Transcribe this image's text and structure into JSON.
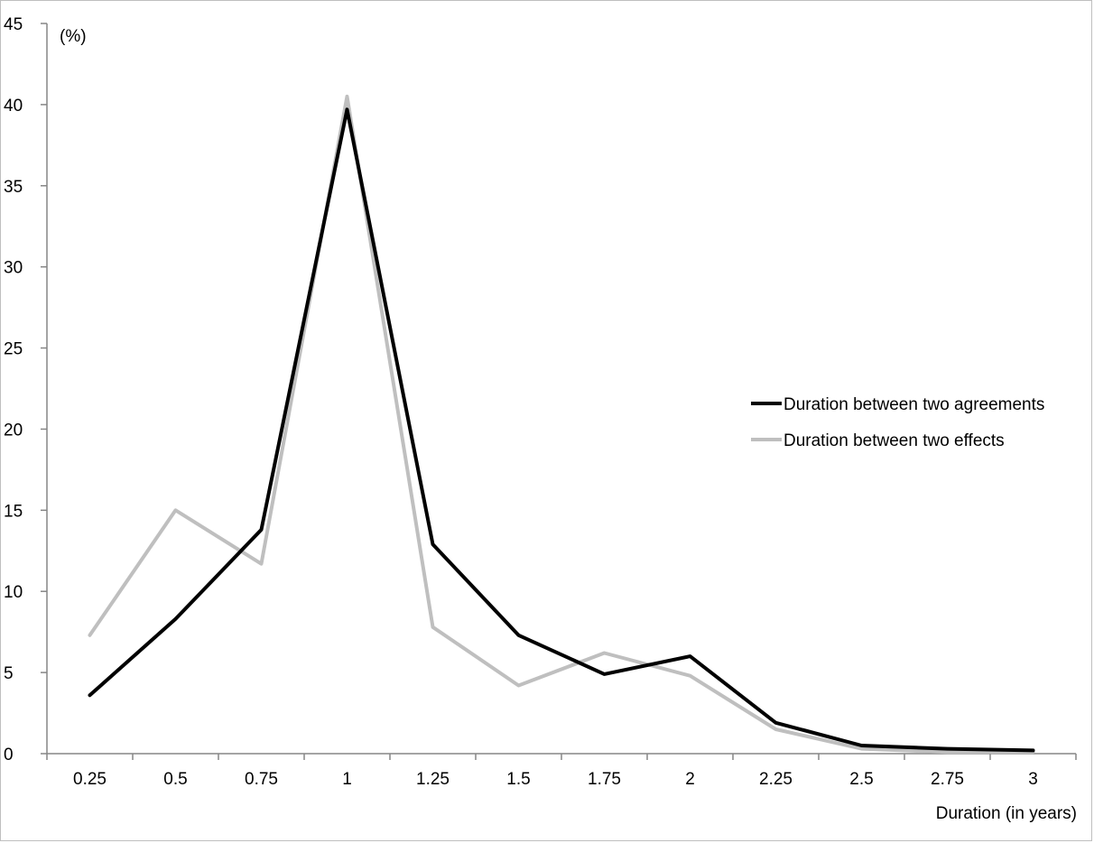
{
  "chart_data": {
    "type": "line",
    "title": "",
    "xlabel": "Duration (in years)",
    "ylabel": "(%)",
    "x": [
      0.25,
      0.5,
      0.75,
      1,
      1.25,
      1.5,
      1.75,
      2,
      2.25,
      2.5,
      2.75,
      3
    ],
    "x_tick_labels": [
      "0.25",
      "0.5",
      "0.75",
      "1",
      "1.25",
      "1.5",
      "1.75",
      "2",
      "2.25",
      "2.5",
      "2.75",
      "3"
    ],
    "y_tick_labels": [
      "0",
      "5",
      "10",
      "15",
      "20",
      "25",
      "30",
      "35",
      "40",
      "45"
    ],
    "ylim": [
      0,
      45
    ],
    "grid": false,
    "legend_position": "right",
    "series": [
      {
        "name": "Duration between two agreements",
        "color": "#000000",
        "values": [
          3.6,
          8.3,
          13.8,
          39.7,
          12.9,
          7.3,
          4.9,
          6.0,
          1.9,
          0.5,
          0.3,
          0.2
        ]
      },
      {
        "name": "Duration between two effects",
        "color": "#bfbfbf",
        "values": [
          7.3,
          15.0,
          11.7,
          40.5,
          7.8,
          4.2,
          6.2,
          4.8,
          1.5,
          0.3,
          0.1,
          0.1
        ]
      }
    ]
  }
}
